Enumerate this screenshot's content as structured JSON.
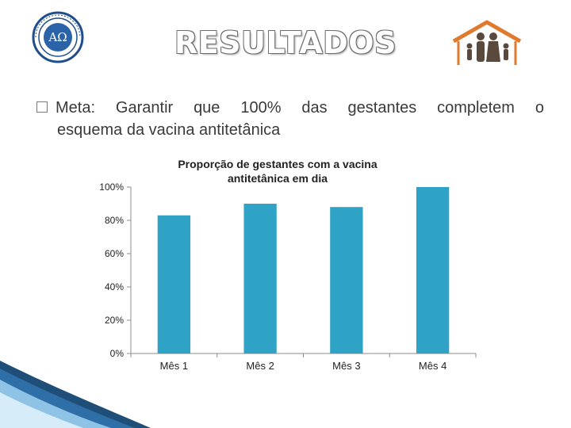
{
  "slide": {
    "title": "RESULTADOS",
    "bullet": {
      "line1_words": [
        "Meta:",
        "Garantir",
        "que",
        "100%",
        "das",
        "gestantes",
        "completem",
        "o"
      ],
      "line2": "esquema da vacina antitetânica"
    },
    "logos": {
      "left": "university-seal-logo",
      "right": "family-house-logo"
    },
    "colors": {
      "bar": "#2fa3c5",
      "axis": "#8c8c8c",
      "title_outline": "#6e6e6e",
      "house": "#e07a2e",
      "family": "#5a4a3e"
    }
  },
  "chart_data": {
    "type": "bar",
    "title_line1": "Proporção de gestantes com a vacina",
    "title_line2": "antitetânica em dia",
    "categories": [
      "Mês 1",
      "Mês 2",
      "Mês 3",
      "Mês 4"
    ],
    "values": [
      83,
      90,
      88,
      100
    ],
    "ylim": [
      0,
      100
    ],
    "y_ticks": [
      "0%",
      "20%",
      "40%",
      "60%",
      "80%",
      "100%"
    ],
    "y_tick_values": [
      0,
      20,
      40,
      60,
      80,
      100
    ],
    "unit": "%",
    "grid": false,
    "legend": "none",
    "bar_color": "#2fa3c5"
  }
}
